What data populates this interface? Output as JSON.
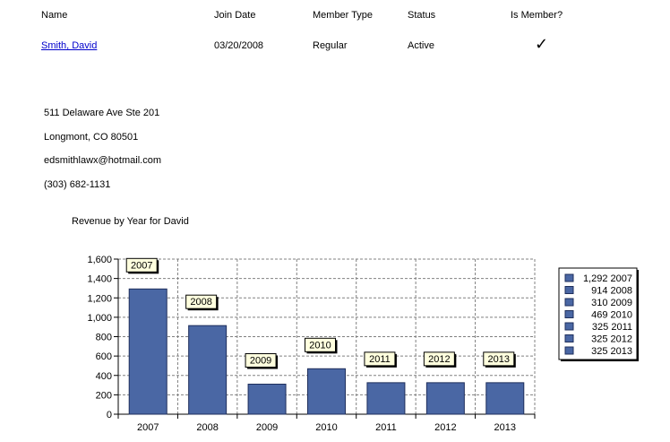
{
  "header": {
    "name": "Name",
    "join_date": "Join Date",
    "member_type": "Member Type",
    "status": "Status",
    "is_member": "Is Member?"
  },
  "member": {
    "name": "Smith, David",
    "join_date": "03/20/2008",
    "member_type": "Regular",
    "status": "Active",
    "is_member": true,
    "is_member_glyph": "✓"
  },
  "contact": {
    "address_line1": "511 Delaware Ave Ste 201",
    "address_line2": "Longmont, CO 80501",
    "email": "edsmithlawx@hotmail.com",
    "phone": "(303) 682-1131"
  },
  "colors": {
    "bar": "#4a67a4",
    "bar_stroke": "#1f2f5c",
    "label_bg": "#ffffde",
    "link": "#0000cc"
  },
  "chart_data": {
    "type": "bar",
    "title": "Revenue by Year for David",
    "categories": [
      "2007",
      "2008",
      "2009",
      "2010",
      "2011",
      "2012",
      "2013"
    ],
    "values": [
      1292,
      914,
      310,
      469,
      325,
      325,
      325
    ],
    "data_labels": [
      "2007",
      "2008",
      "2009",
      "2010",
      "2011",
      "2012",
      "2013"
    ],
    "ylim": [
      0,
      1600
    ],
    "yticks": [
      0,
      200,
      400,
      600,
      800,
      1000,
      1200,
      1400,
      1600
    ],
    "ytick_labels": [
      "0",
      "200",
      "400",
      "600",
      "800",
      "1,000",
      "1,200",
      "1,400",
      "1,600"
    ],
    "legend": [
      "1,292 2007",
      "914 2008",
      "310 2009",
      "469 2010",
      "325 2011",
      "325 2012",
      "325 2013"
    ],
    "legend_position": "right",
    "grid": true,
    "xlabel": "",
    "ylabel": ""
  }
}
